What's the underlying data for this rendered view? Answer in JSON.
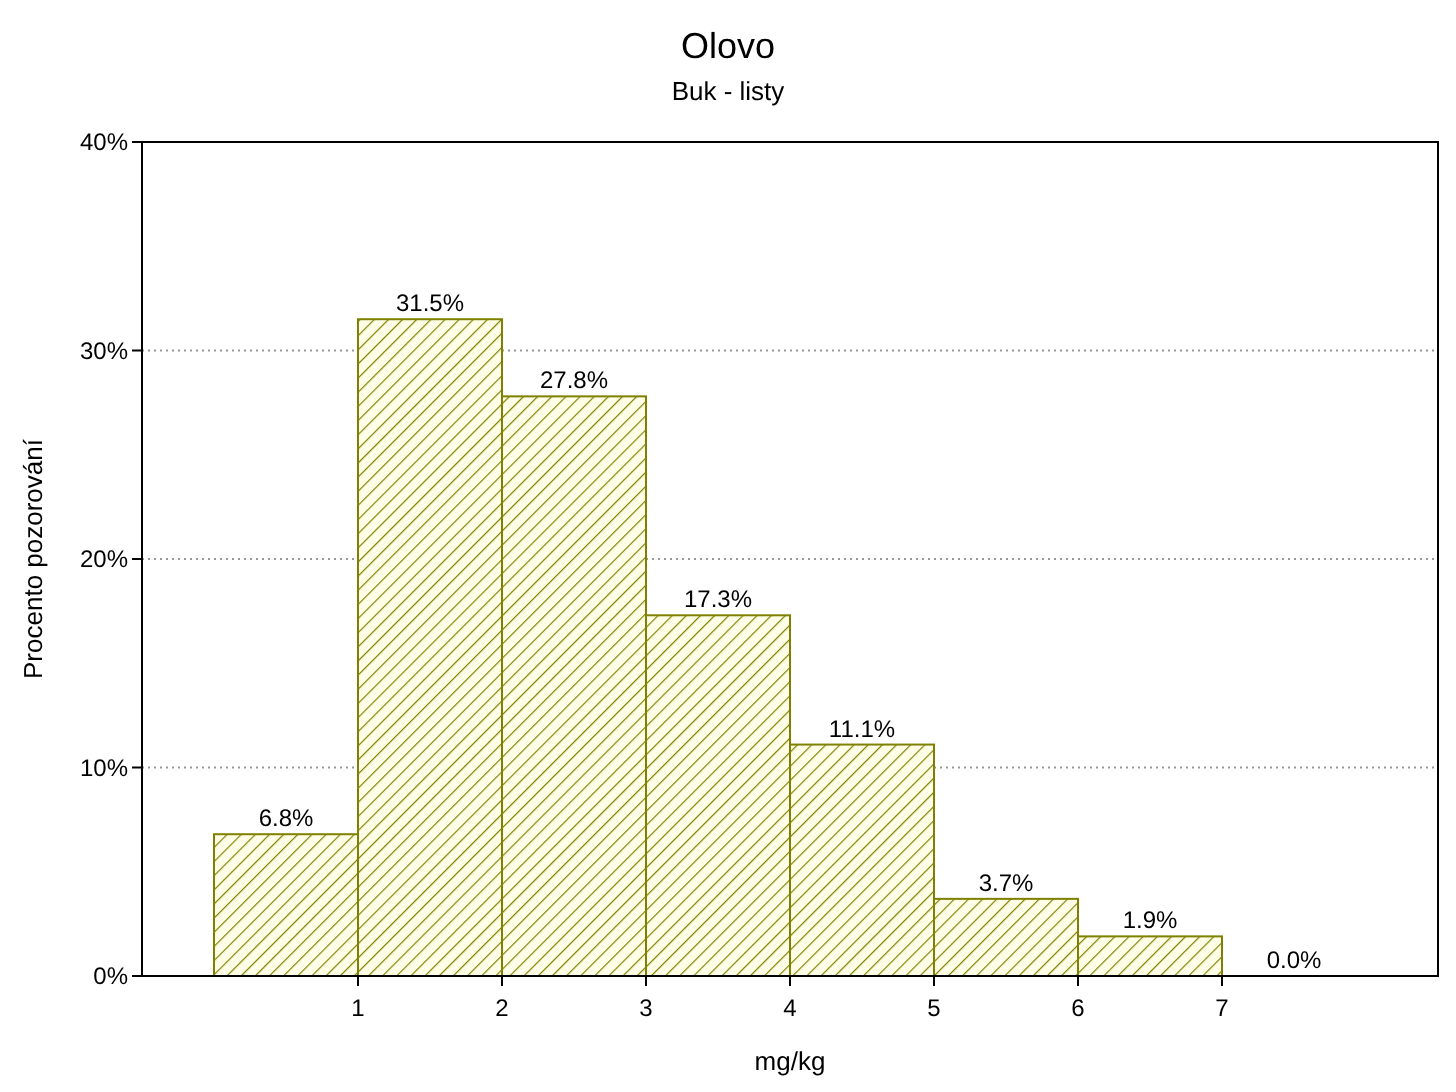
{
  "chart_data": {
    "type": "histogram",
    "title": "Olovo",
    "subtitle": "Buk - listy",
    "xlabel": "mg/kg",
    "ylabel": "Procento pozorování",
    "bins": [
      0,
      1,
      2,
      3,
      4,
      5,
      6,
      7,
      8
    ],
    "values": [
      6.8,
      31.5,
      27.8,
      17.3,
      11.1,
      3.7,
      1.9,
      0.0
    ],
    "value_labels": [
      "6.8%",
      "31.5%",
      "27.8%",
      "17.3%",
      "11.1%",
      "3.7%",
      "1.9%",
      "0.0%"
    ],
    "color": "#808000",
    "xlim": [
      -0.5,
      8.5
    ],
    "xticks": [
      1,
      2,
      3,
      4,
      5,
      6,
      7
    ],
    "ylim": [
      0,
      40
    ],
    "yticks": [
      {
        "value": 0,
        "label": "0%"
      },
      {
        "value": 10,
        "label": "10%"
      },
      {
        "value": 20,
        "label": "20%"
      },
      {
        "value": 30,
        "label": "30%"
      },
      {
        "value": 40,
        "label": "40%"
      }
    ],
    "grid": "y"
  }
}
